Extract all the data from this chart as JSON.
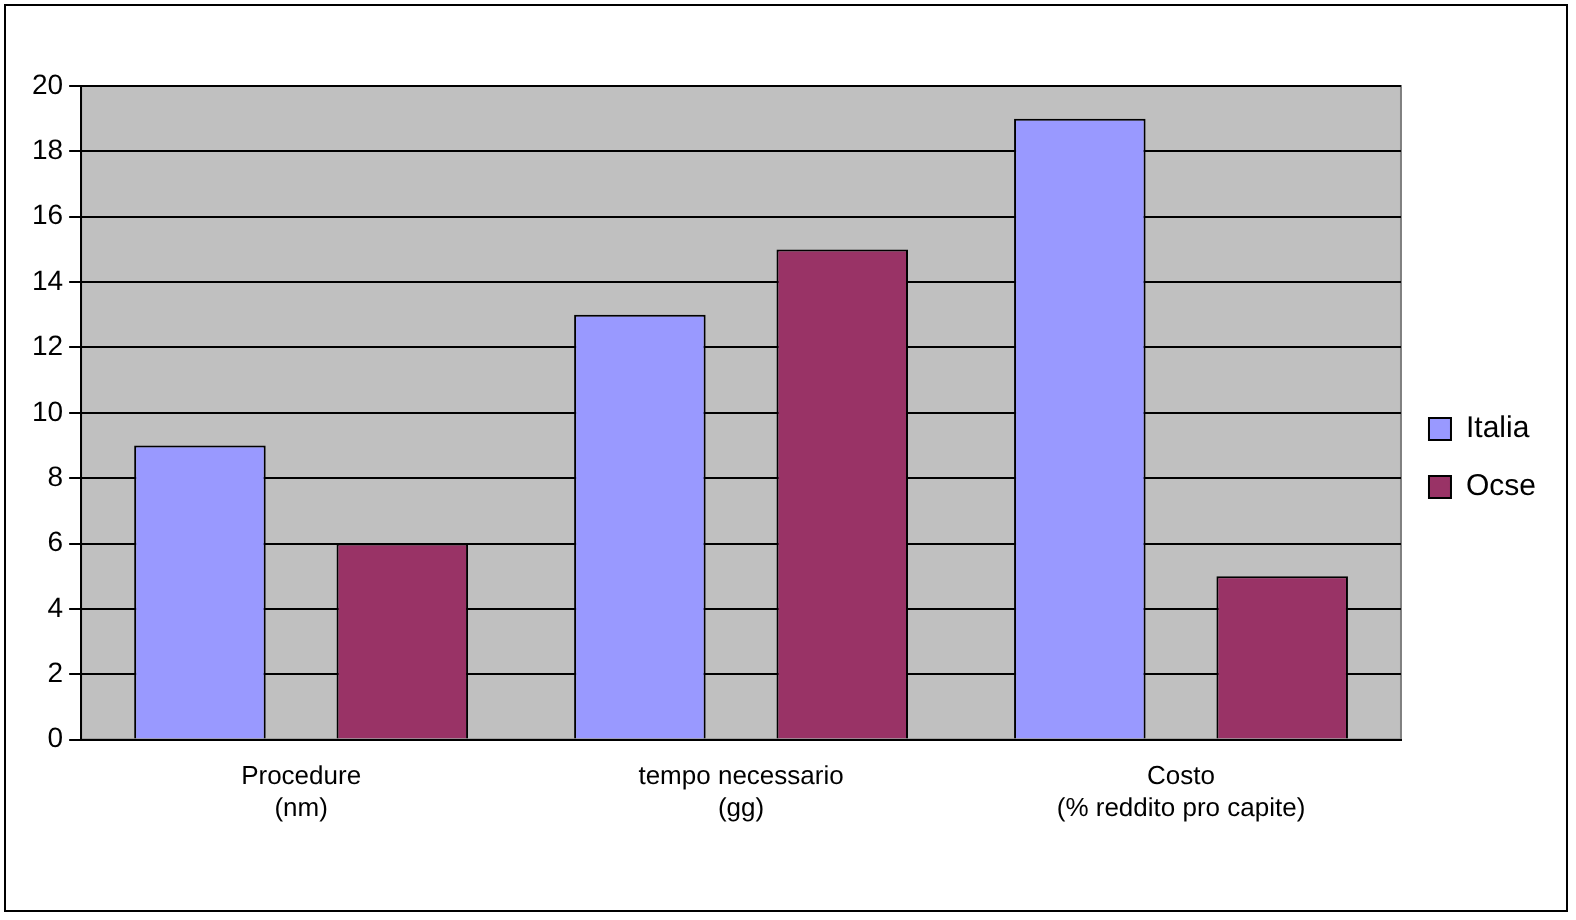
{
  "chart_data": {
    "type": "bar",
    "categories": [
      "Procedure\n(nm)",
      "tempo necessario\n(gg)",
      "Costo\n(% reddito pro capite)"
    ],
    "series": [
      {
        "name": "Italia",
        "color": "#9999ff",
        "values": [
          9,
          13,
          19
        ]
      },
      {
        "name": "Ocse",
        "color": "#993366",
        "values": [
          6,
          15,
          5
        ]
      }
    ],
    "ylim": [
      0,
      20
    ],
    "yticks": [
      0,
      2,
      4,
      6,
      8,
      10,
      12,
      14,
      16,
      18,
      20
    ],
    "grid": "y",
    "legend": "right"
  }
}
